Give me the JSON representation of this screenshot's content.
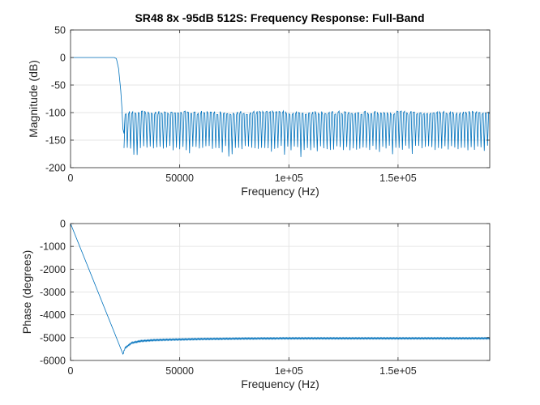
{
  "figure": {
    "title": "SR48 8x -95dB 512S: Frequency Response: Full-Band"
  },
  "chart_data": [
    {
      "type": "line",
      "title": "SR48 8x -95dB 512S: Frequency Response: Full-Band",
      "xlabel": "Frequency (Hz)",
      "ylabel": "Magnitude (dB)",
      "xlim": [
        0,
        192000
      ],
      "ylim": [
        -200,
        50
      ],
      "xticks": [
        0,
        50000,
        100000,
        150000
      ],
      "xtick_labels": [
        "0",
        "50000",
        "1e+05",
        "1.5e+05"
      ],
      "yticks": [
        50,
        0,
        -50,
        -100,
        -150,
        -200
      ],
      "ytick_labels": [
        "50",
        "0",
        "-50",
        "-100",
        "-150",
        "-200"
      ],
      "grid": true,
      "legend": "none",
      "series": [
        {
          "color": "#0072bd",
          "passband": {
            "x": [
              0,
              20000
            ],
            "y": [
              0,
              0
            ]
          },
          "transition": {
            "x": [
              20000,
              21000,
              22000,
              23000,
              23500,
              24000,
              24500,
              25000
            ],
            "y": [
              0,
              -2,
              -20,
              -60,
              -90,
              -130,
              -138,
              -104
            ]
          },
          "stopband": {
            "x_range": [
              24500,
              192000
            ],
            "sidelobe_peak_db": -97,
            "sidelobe_ripple_db": [
              -104,
              -97
            ],
            "notch_depth_db": [
              -160,
              -185
            ],
            "notch_spacing_hz": 1500
          }
        }
      ]
    },
    {
      "type": "line",
      "xlabel": "Frequency (Hz)",
      "ylabel": "Phase (degrees)",
      "xlim": [
        0,
        192000
      ],
      "ylim": [
        -6000,
        0
      ],
      "xticks": [
        0,
        50000,
        100000,
        150000
      ],
      "xtick_labels": [
        "0",
        "50000",
        "1e+05",
        "1.5e+05"
      ],
      "yticks": [
        0,
        -1000,
        -2000,
        -3000,
        -4000,
        -5000,
        -6000
      ],
      "ytick_labels": [
        "0",
        "-1000",
        "-2000",
        "-3000",
        "-4000",
        "-5000",
        "-6000"
      ],
      "grid": true,
      "legend": "none",
      "series": [
        {
          "color": "#0072bd",
          "x": [
            0,
            5000,
            10000,
            15000,
            20000,
            24000,
            25000,
            28000,
            32000,
            38000,
            45000,
            60000,
            80000,
            100000,
            130000,
            160000,
            192000
          ],
          "y": [
            0,
            -1190,
            -2380,
            -3570,
            -4760,
            -5720,
            -5450,
            -5230,
            -5150,
            -5110,
            -5090,
            -5060,
            -5040,
            -5030,
            -5030,
            -5030,
            -5030
          ],
          "ripple_deg": 60
        }
      ]
    }
  ]
}
